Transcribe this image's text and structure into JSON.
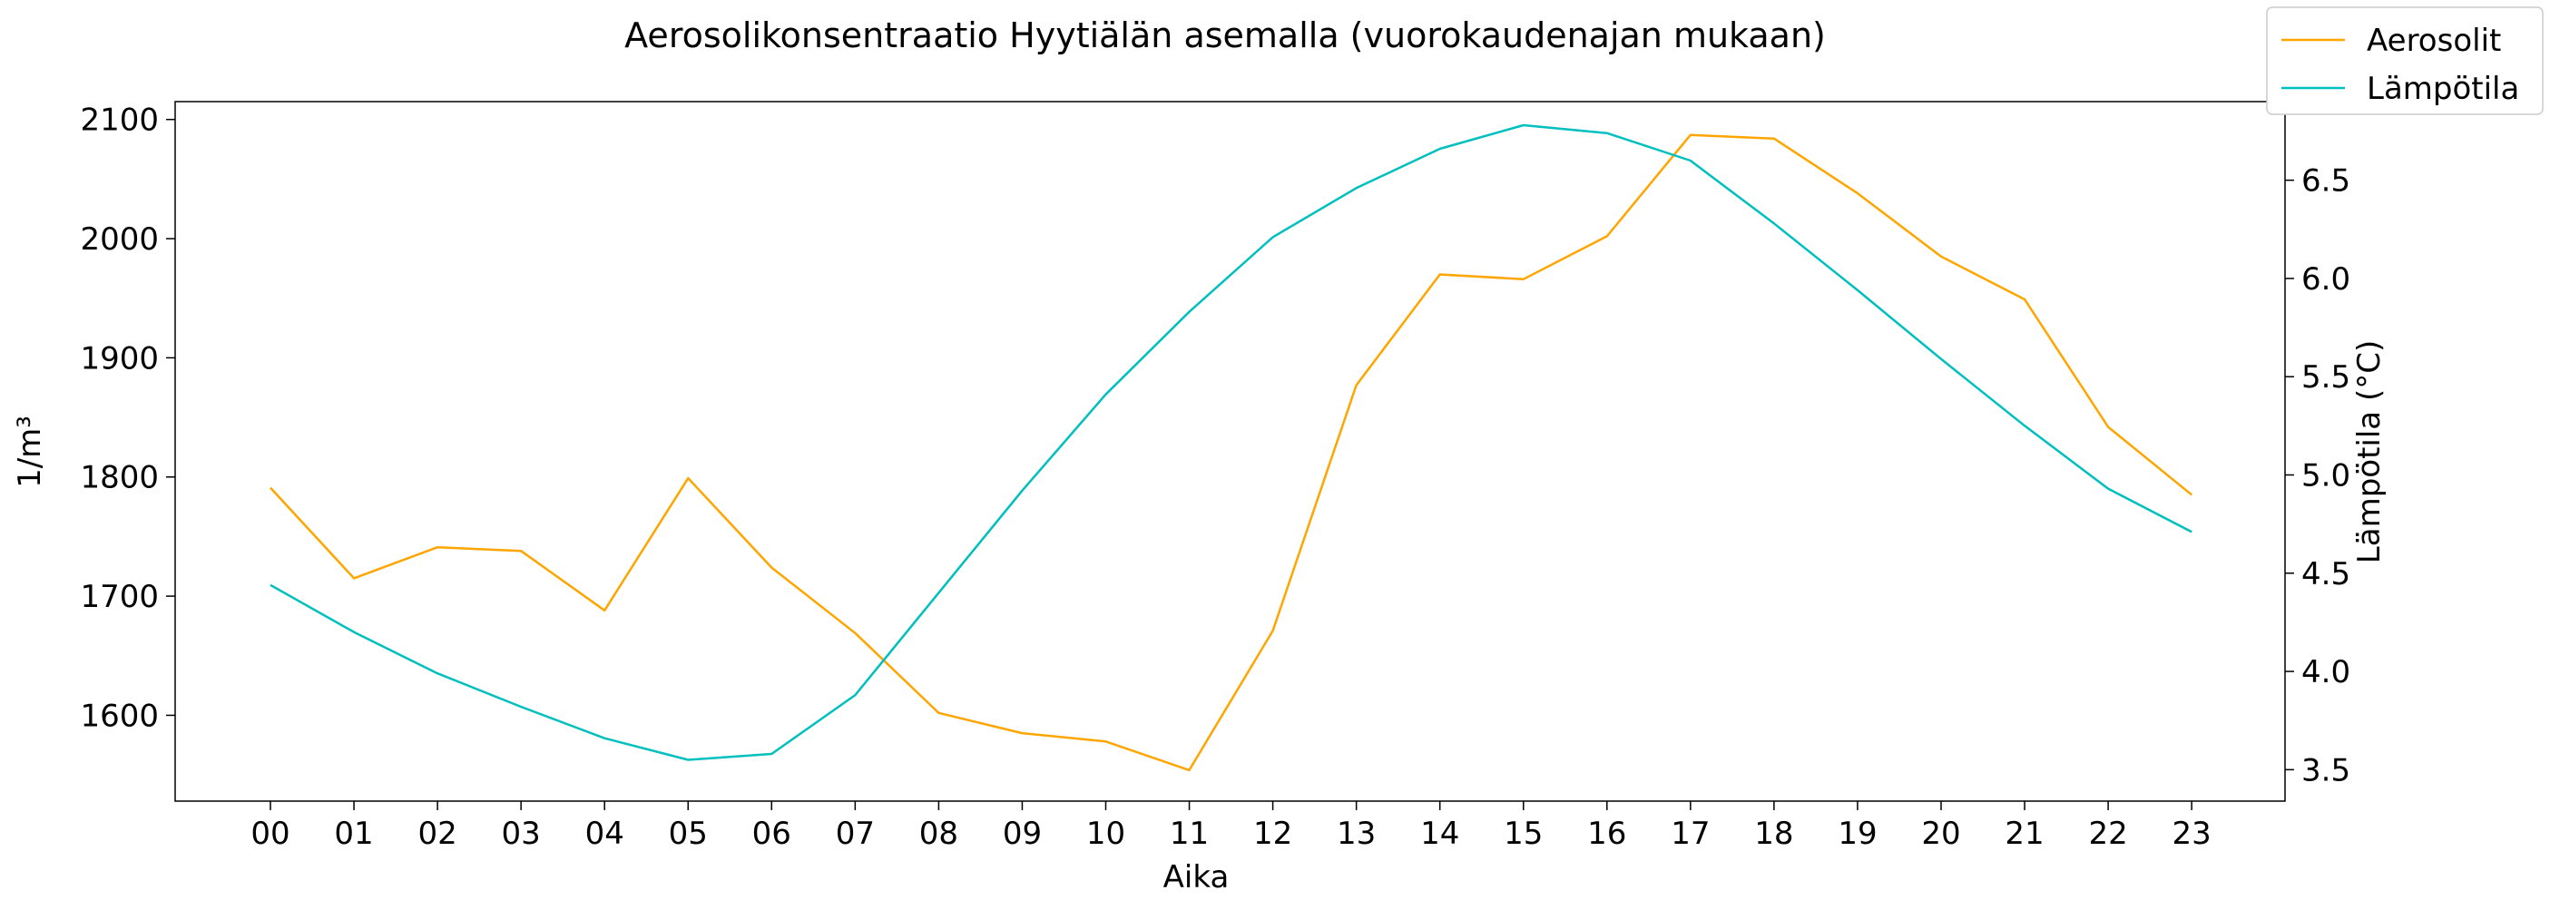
{
  "chart_data": {
    "type": "line",
    "title": "Aerosolikonsentraatio Hyytiälän asemalla (vuorokaudenajan mukaan)",
    "xlabel": "Aika",
    "ylabel_left": "1/m³",
    "ylabel_right": "Lämpötila (°C)",
    "categories": [
      "00",
      "01",
      "02",
      "03",
      "04",
      "05",
      "06",
      "07",
      "08",
      "09",
      "10",
      "11",
      "12",
      "13",
      "14",
      "15",
      "16",
      "17",
      "18",
      "19",
      "20",
      "21",
      "22",
      "23"
    ],
    "y_left_range": [
      1528,
      2115
    ],
    "y_left_ticks": [
      "1600",
      "1700",
      "1800",
      "1900",
      "2000",
      "2100"
    ],
    "y_right_range": [
      3.34,
      6.9
    ],
    "y_right_ticks": [
      "3.5",
      "4.0",
      "4.5",
      "5.0",
      "5.5",
      "6.0",
      "6.5"
    ],
    "legend_position": "top-right (outside plot)",
    "grid": false,
    "series": [
      {
        "name": "Aerosolit",
        "axis": "left",
        "color": "#FFA500",
        "values": [
          1791,
          1715,
          1741,
          1738,
          1688,
          1799,
          1724,
          1669,
          1602,
          1585,
          1578,
          1554,
          1671,
          1877,
          1970,
          1966,
          2002,
          2087,
          2084,
          2038,
          1985,
          1949,
          1842,
          1785
        ]
      },
      {
        "name": "Lämpötila",
        "axis": "right",
        "color": "#00BFBF",
        "values": [
          4.44,
          4.2,
          3.99,
          3.82,
          3.66,
          3.55,
          3.58,
          3.88,
          4.4,
          4.92,
          5.41,
          5.83,
          6.21,
          6.46,
          6.66,
          6.78,
          6.74,
          6.6,
          6.28,
          5.94,
          5.59,
          5.25,
          4.93,
          4.71
        ]
      }
    ]
  }
}
